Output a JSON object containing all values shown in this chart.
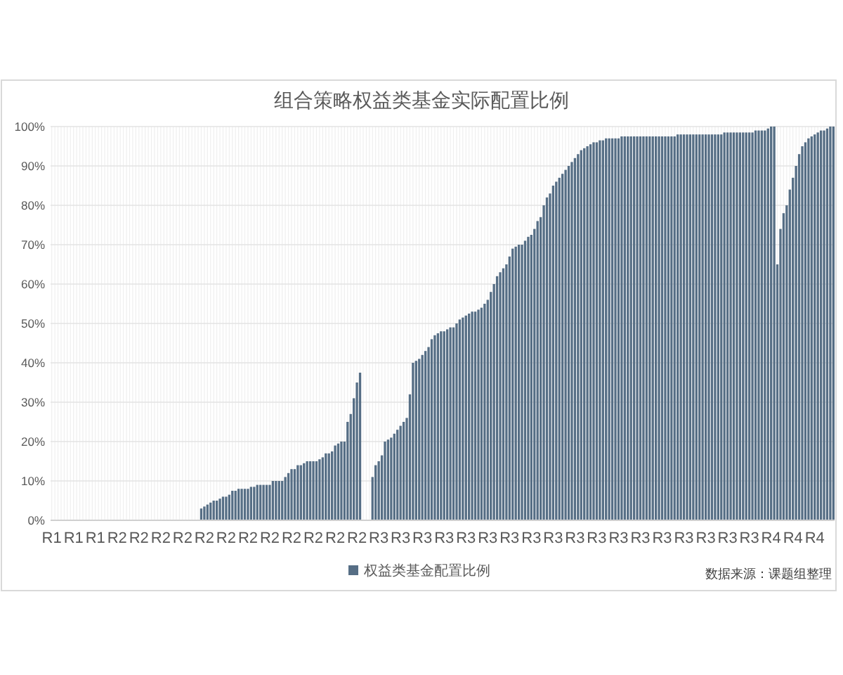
{
  "chart_data": {
    "type": "bar",
    "title": "组合策略权益类基金实际配置比例",
    "categories": [
      "R1",
      null,
      null,
      null,
      null,
      null,
      null,
      "R1",
      null,
      null,
      null,
      null,
      null,
      null,
      "R1",
      null,
      null,
      null,
      null,
      null,
      null,
      "R2",
      null,
      null,
      null,
      null,
      null,
      null,
      "R2",
      null,
      null,
      null,
      null,
      null,
      null,
      "R2",
      null,
      null,
      null,
      null,
      null,
      null,
      "R2",
      null,
      null,
      null,
      null,
      null,
      null,
      "R2",
      null,
      null,
      null,
      null,
      null,
      null,
      "R2",
      null,
      null,
      null,
      null,
      null,
      null,
      "R2",
      null,
      null,
      null,
      null,
      null,
      null,
      "R2",
      null,
      null,
      null,
      null,
      null,
      null,
      "R2",
      null,
      null,
      null,
      null,
      null,
      null,
      "R2",
      null,
      null,
      null,
      null,
      null,
      null,
      "R2",
      null,
      null,
      null,
      null,
      null,
      null,
      "R2",
      null,
      null,
      null,
      null,
      null,
      null,
      "R3",
      null,
      null,
      null,
      null,
      null,
      null,
      "R3",
      null,
      null,
      null,
      null,
      null,
      null,
      "R3",
      null,
      null,
      null,
      null,
      null,
      null,
      "R3",
      null,
      null,
      null,
      null,
      null,
      null,
      "R3",
      null,
      null,
      null,
      null,
      null,
      null,
      "R3",
      null,
      null,
      null,
      null,
      null,
      null,
      "R3",
      null,
      null,
      null,
      null,
      null,
      null,
      "R3",
      null,
      null,
      null,
      null,
      null,
      null,
      "R3",
      null,
      null,
      null,
      null,
      null,
      null,
      "R3",
      null,
      null,
      null,
      null,
      null,
      null,
      "R3",
      null,
      null,
      null,
      null,
      null,
      null,
      "R3",
      null,
      null,
      null,
      null,
      null,
      null,
      "R3",
      null,
      null,
      null,
      null,
      null,
      null,
      "R3",
      null,
      null,
      null,
      null,
      null,
      null,
      "R3",
      null,
      null,
      null,
      null,
      null,
      null,
      "R3",
      null,
      null,
      null,
      null,
      null,
      null,
      "R3",
      null,
      null,
      null,
      null,
      null,
      null,
      "R3",
      null,
      null,
      null,
      null,
      null,
      null,
      "R4",
      null,
      null,
      null,
      null,
      null,
      null,
      "R4",
      null,
      null,
      null,
      null,
      null,
      null,
      "R4",
      null,
      null,
      null,
      null,
      null,
      null
    ],
    "series": [
      {
        "name": "权益类基金配置比例",
        "color": "#566e85",
        "values": [
          0,
          0,
          0,
          0,
          0,
          0,
          0,
          0,
          0,
          0,
          0,
          0,
          0,
          0,
          0,
          0,
          0,
          0,
          0,
          0,
          0,
          0,
          0,
          0,
          0,
          0,
          0,
          0,
          0,
          0,
          0,
          0,
          0,
          0,
          0,
          0,
          0,
          0,
          0,
          0,
          0,
          0,
          0,
          0,
          0,
          0,
          0,
          0,
          3,
          3.5,
          4,
          4.5,
          5,
          5,
          5.5,
          6,
          6,
          6.5,
          7.5,
          7.5,
          8,
          8,
          8,
          8,
          8.5,
          8.5,
          9,
          9,
          9,
          9,
          9,
          10,
          10,
          10,
          10,
          11,
          12,
          13,
          13,
          14,
          14,
          14.5,
          15,
          15,
          15,
          15,
          15.5,
          16,
          17,
          17,
          17.5,
          19,
          19.5,
          20,
          20,
          25,
          27,
          31,
          35,
          37.5,
          0,
          0,
          0,
          11,
          14,
          15,
          16.5,
          20,
          20.5,
          21,
          22,
          23,
          24,
          25,
          26,
          32,
          40,
          40.5,
          41,
          42,
          43,
          44,
          46,
          47,
          47.5,
          48,
          48,
          48.5,
          49,
          49,
          50,
          51,
          51.5,
          52,
          52.5,
          53,
          53,
          53.5,
          54,
          55,
          56,
          58,
          60,
          62,
          63,
          64,
          65,
          67,
          69,
          69.5,
          70,
          70,
          71,
          72,
          72.5,
          74,
          76,
          77,
          80,
          82,
          83,
          85,
          86,
          87,
          88,
          89,
          90,
          91,
          92,
          93,
          94,
          94.5,
          95,
          95.5,
          96,
          96,
          96.5,
          96.5,
          97,
          97,
          97,
          97,
          97,
          97.5,
          97.5,
          97.5,
          97.5,
          97.5,
          97.5,
          97.5,
          97.5,
          97.5,
          97.5,
          97.5,
          97.5,
          97.5,
          97.5,
          97.5,
          97.5,
          97.5,
          97.5,
          98,
          98,
          98,
          98,
          98,
          98,
          98,
          98,
          98,
          98,
          98,
          98,
          98,
          98,
          98,
          98.5,
          98.5,
          98.5,
          98.5,
          98.5,
          98.5,
          98.5,
          98.5,
          98.5,
          98.5,
          99,
          99,
          99,
          99,
          99.5,
          100,
          100,
          65,
          74,
          78,
          80,
          84,
          87,
          90,
          93,
          95,
          96,
          97,
          97.5,
          98,
          98.5,
          99,
          99,
          99.5,
          100,
          100
        ]
      }
    ],
    "ylim": [
      0,
      100
    ],
    "yticks": [
      {
        "value": 0,
        "label": "0%"
      },
      {
        "value": 10,
        "label": "10%"
      },
      {
        "value": 20,
        "label": "20%"
      },
      {
        "value": 30,
        "label": "30%"
      },
      {
        "value": 40,
        "label": "40%"
      },
      {
        "value": 50,
        "label": "50%"
      },
      {
        "value": 60,
        "label": "60%"
      },
      {
        "value": 70,
        "label": "70%"
      },
      {
        "value": 80,
        "label": "80%"
      },
      {
        "value": 90,
        "label": "90%"
      },
      {
        "value": 100,
        "label": "100%"
      }
    ],
    "grid": true,
    "legend": "bottom",
    "annotations": [
      "数据来源：课题组整理"
    ]
  }
}
